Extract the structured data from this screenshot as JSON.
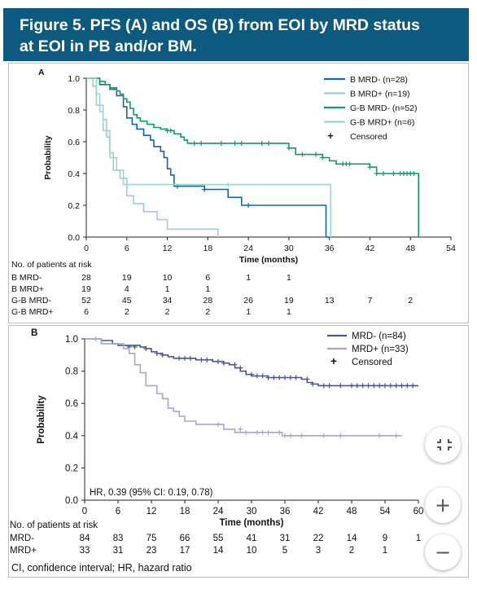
{
  "title": {
    "line1": "Figure 5. PFS (A) and OS (B) from EOI by MRD status",
    "line2": "at EOI in PB and/or BM."
  },
  "colors": {
    "title_bg": "#0d5a7e",
    "b_mrd_neg": "#1565a6",
    "b_mrd_pos": "#9fcbe8",
    "gb_mrd_neg": "#149a66",
    "gb_mrd_pos": "#9ad8c4",
    "mrd_neg": "#4753a2",
    "mrd_pos": "#a4a8d2"
  },
  "footnote": "CI, confidence interval; HR, hazard ratio",
  "controls": {
    "collapse_icon": "collapse-icon",
    "zoom_in_label": "+",
    "zoom_out_label": "−"
  },
  "chart_data": [
    {
      "type": "line",
      "panel_label": "A",
      "xlabel": "Time (months)",
      "ylabel": "Probability",
      "xlim": [
        0,
        54
      ],
      "ylim": [
        0,
        1
      ],
      "xticks": [
        "0",
        "6",
        "12",
        "18",
        "24",
        "30",
        "36",
        "42",
        "48",
        "54"
      ],
      "yticks": [
        "0.0",
        "0.2",
        "0.4",
        "0.6",
        "0.8",
        "1.0"
      ],
      "legend_position": "top-right",
      "censored_label": "Censored",
      "series": [
        {
          "name": "B MRD- (n=28)",
          "color": "#1565a6",
          "x": [
            0,
            2,
            3.5,
            4.5,
            5.5,
            6,
            6.8,
            7.5,
            8.5,
            9.5,
            10,
            11,
            11.5,
            12,
            12.5,
            13,
            17,
            17.5,
            18,
            20,
            21,
            22,
            23,
            24,
            25,
            35,
            35.5,
            36
          ],
          "y": [
            1.0,
            0.96,
            0.93,
            0.89,
            0.82,
            0.75,
            0.71,
            0.68,
            0.64,
            0.61,
            0.57,
            0.54,
            0.5,
            0.43,
            0.39,
            0.32,
            0.32,
            0.3,
            0.3,
            0.3,
            0.25,
            0.25,
            0.2,
            0.2,
            0.2,
            0.2,
            0.0,
            0.0
          ],
          "censored_x": [
            13.5,
            17.5,
            24
          ],
          "censored_y": [
            0.32,
            0.3,
            0.2
          ]
        },
        {
          "name": "B MRD+ (n=19)",
          "color": "#9fcbe8",
          "x": [
            0,
            1,
            1.5,
            2,
            2.5,
            3,
            3.5,
            4,
            5,
            6,
            6.5,
            7,
            8,
            8.5,
            9,
            10,
            10.5,
            11,
            12,
            13,
            14,
            15,
            16,
            17,
            18,
            19,
            19.5
          ],
          "y": [
            1.0,
            0.95,
            0.9,
            0.79,
            0.74,
            0.63,
            0.53,
            0.42,
            0.37,
            0.26,
            0.26,
            0.21,
            0.21,
            0.16,
            0.16,
            0.16,
            0.11,
            0.11,
            0.05,
            0.05,
            0.05,
            0.05,
            0.05,
            0.05,
            0.05,
            0.05,
            0.0
          ]
        },
        {
          "name": "G-B MRD- (n=52)",
          "color": "#149a66",
          "x": [
            0,
            2,
            2.8,
            3.5,
            4.5,
            5,
            5.5,
            6,
            6.5,
            7,
            7.5,
            8,
            9,
            10,
            11,
            12,
            13,
            13.5,
            14,
            14.5,
            15,
            16,
            18,
            19,
            20,
            24,
            26,
            30,
            31,
            32,
            35,
            36,
            36.5,
            37,
            38,
            41,
            42,
            43,
            48,
            49,
            49.2
          ],
          "y": [
            1.0,
            0.98,
            0.96,
            0.94,
            0.92,
            0.9,
            0.87,
            0.85,
            0.81,
            0.77,
            0.75,
            0.73,
            0.71,
            0.69,
            0.68,
            0.67,
            0.65,
            0.65,
            0.63,
            0.61,
            0.59,
            0.59,
            0.59,
            0.59,
            0.59,
            0.59,
            0.59,
            0.56,
            0.52,
            0.52,
            0.5,
            0.48,
            0.48,
            0.46,
            0.46,
            0.46,
            0.44,
            0.4,
            0.4,
            0.4,
            0.0
          ],
          "censored_x": [
            12,
            12.5,
            16,
            17,
            20,
            22,
            23,
            26,
            27,
            30,
            32,
            34,
            35,
            38,
            38.5,
            39,
            42,
            43,
            44,
            45.5,
            46.5,
            47,
            47.5,
            48,
            48.5
          ],
          "censored_y": [
            0.67,
            0.67,
            0.59,
            0.59,
            0.59,
            0.59,
            0.59,
            0.59,
            0.59,
            0.56,
            0.52,
            0.52,
            0.5,
            0.46,
            0.46,
            0.46,
            0.44,
            0.4,
            0.4,
            0.4,
            0.4,
            0.4,
            0.4,
            0.4,
            0.4
          ]
        },
        {
          "name": "G-B MRD+ (n=6)",
          "color": "#9ad8c4",
          "x": [
            0,
            1.5,
            2.5,
            3.5,
            4.5,
            5.5,
            36,
            36.2
          ],
          "y": [
            1.0,
            0.83,
            0.67,
            0.5,
            0.42,
            0.33,
            0.33,
            0.0
          ],
          "censored_x": [
            21
          ],
          "censored_y": [
            0.33
          ]
        }
      ],
      "risk_table": {
        "header": "No. of patients at risk",
        "rows": [
          {
            "label": "B MRD-",
            "values": [
              "28",
              "19",
              "10",
              "6",
              "1",
              "1",
              "",
              "",
              ""
            ]
          },
          {
            "label": "B MRD+",
            "values": [
              "19",
              "4",
              "1",
              "1",
              "",
              "",
              "",
              "",
              ""
            ]
          },
          {
            "label": "G-B MRD-",
            "values": [
              "52",
              "45",
              "34",
              "28",
              "26",
              "19",
              "13",
              "7",
              "2"
            ]
          },
          {
            "label": "G-B MRD+",
            "values": [
              "6",
              "2",
              "2",
              "2",
              "1",
              "1",
              "",
              "",
              ""
            ]
          }
        ]
      }
    },
    {
      "type": "line",
      "panel_label": "B",
      "xlabel": "Time (months)",
      "ylabel": "Probability",
      "xlim": [
        0,
        60
      ],
      "ylim": [
        0,
        1
      ],
      "xticks": [
        "0",
        "6",
        "12",
        "18",
        "24",
        "30",
        "36",
        "42",
        "48",
        "54",
        "60"
      ],
      "yticks": [
        "0.0",
        "0.2",
        "0.4",
        "0.6",
        "0.8",
        "1.0"
      ],
      "legend_position": "top-right",
      "censored_label": "Censored",
      "annotation": "HR, 0.39 (95% CI: 0.19, 0.78)",
      "series": [
        {
          "name": "MRD- (n=84)",
          "color": "#4753a2",
          "x": [
            0,
            3,
            5,
            6,
            10,
            11,
            12,
            13,
            14,
            15,
            16,
            17,
            20,
            22,
            23,
            25,
            26,
            27,
            28,
            29,
            30,
            33,
            39,
            40,
            41,
            42,
            45,
            50,
            55,
            57,
            60
          ],
          "y": [
            1.0,
            0.99,
            0.97,
            0.96,
            0.95,
            0.94,
            0.92,
            0.91,
            0.9,
            0.89,
            0.88,
            0.88,
            0.87,
            0.87,
            0.86,
            0.85,
            0.84,
            0.82,
            0.8,
            0.78,
            0.77,
            0.76,
            0.75,
            0.73,
            0.72,
            0.71,
            0.71,
            0.71,
            0.71,
            0.71,
            0.71
          ],
          "censored_x": [
            8,
            9,
            11,
            13,
            14,
            17,
            18,
            19,
            21,
            22,
            24,
            25,
            27,
            28,
            30,
            31,
            32,
            33,
            34,
            35,
            36,
            37,
            38,
            40,
            41,
            43,
            44,
            46,
            48,
            49,
            50,
            51,
            52,
            53,
            54,
            55,
            56,
            57,
            58,
            59
          ],
          "censored_y": [
            0.95,
            0.95,
            0.94,
            0.91,
            0.9,
            0.88,
            0.88,
            0.88,
            0.87,
            0.87,
            0.86,
            0.85,
            0.84,
            0.82,
            0.78,
            0.77,
            0.77,
            0.76,
            0.76,
            0.76,
            0.76,
            0.76,
            0.76,
            0.75,
            0.72,
            0.71,
            0.71,
            0.71,
            0.71,
            0.71,
            0.71,
            0.71,
            0.71,
            0.71,
            0.71,
            0.71,
            0.71,
            0.71,
            0.71,
            0.71
          ]
        },
        {
          "name": "MRD+ (n=33)",
          "color": "#a4a8d2",
          "x": [
            0,
            3,
            7,
            8,
            9,
            10,
            11,
            13,
            14,
            15,
            16,
            17,
            18,
            20,
            22,
            25,
            27,
            29,
            30,
            35,
            35.5,
            36,
            40,
            45,
            50,
            55,
            57
          ],
          "y": [
            1.0,
            0.97,
            0.94,
            0.91,
            0.84,
            0.79,
            0.71,
            0.66,
            0.63,
            0.57,
            0.55,
            0.52,
            0.49,
            0.47,
            0.47,
            0.44,
            0.42,
            0.42,
            0.42,
            0.42,
            0.4,
            0.4,
            0.4,
            0.4,
            0.4,
            0.4,
            0.4
          ],
          "censored_x": [
            2,
            24,
            28,
            29,
            31,
            32,
            33,
            35,
            36,
            37,
            39,
            43,
            46,
            53,
            56
          ],
          "censored_y": [
            1.0,
            0.47,
            0.44,
            0.42,
            0.42,
            0.42,
            0.42,
            0.42,
            0.4,
            0.4,
            0.4,
            0.4,
            0.4,
            0.4,
            0.4
          ]
        }
      ],
      "risk_table": {
        "header": "No. of patients at risk",
        "rows": [
          {
            "label": "MRD-",
            "values": [
              "84",
              "83",
              "75",
              "66",
              "55",
              "41",
              "31",
              "22",
              "14",
              "9",
              "1"
            ]
          },
          {
            "label": "MRD+",
            "values": [
              "33",
              "31",
              "23",
              "17",
              "14",
              "10",
              "5",
              "3",
              "2",
              "1",
              ""
            ]
          }
        ]
      }
    }
  ]
}
